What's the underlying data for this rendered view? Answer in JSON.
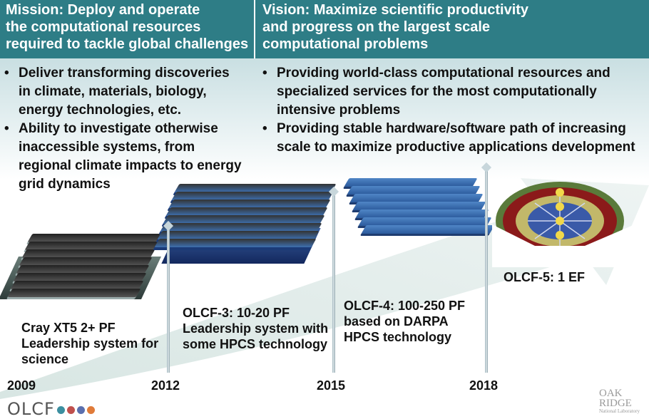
{
  "header": {
    "mission_lines": [
      "Mission: Deploy and operate",
      "the computational resources",
      "required to tackle global challenges"
    ],
    "vision_lines": [
      "Vision: Maximize scientific productivity",
      "and progress on the largest scale",
      "computational problems"
    ],
    "colors": {
      "header_bg": "#2e7d86",
      "band": "#c9dfe2"
    }
  },
  "mission_bullets": [
    {
      "lines": [
        "Deliver transforming discoveries",
        "in climate, materials, biology,",
        "energy technologies, etc."
      ]
    },
    {
      "lines": [
        "Ability to investigate otherwise",
        "inaccessible systems, from",
        "regional climate impacts to energy",
        "grid dynamics"
      ]
    }
  ],
  "vision_bullets": [
    {
      "lines": [
        "Providing world-class computational resources and",
        "specialized services for the most computationally",
        "intensive problems"
      ]
    },
    {
      "lines": [
        "Providing stable hardware/software path of increasing",
        "scale to maximize productive applications development"
      ]
    }
  ],
  "milestones": [
    {
      "year": "2009",
      "caption": [
        "Cray XT5 2+ PF",
        "Leadership system for",
        "science"
      ]
    },
    {
      "year": "2012",
      "caption": [
        "OLCF-3: 10-20 PF",
        "Leadership system with",
        "some HPCS technology"
      ]
    },
    {
      "year": "2015",
      "caption": [
        "OLCF-4:  100-250 PF",
        "based on DARPA",
        "HPCS technology"
      ]
    },
    {
      "year": "2018",
      "caption": [
        "OLCF-5:   1 EF"
      ]
    }
  ],
  "logo": {
    "text": "OLCF",
    "dot_colors": [
      "#3c8fa0",
      "#c0504d",
      "#5b6fae",
      "#e07b39"
    ]
  },
  "oak_ridge": {
    "line1": "OAK",
    "line2": "RIDGE",
    "line3": "National Laboratory"
  }
}
